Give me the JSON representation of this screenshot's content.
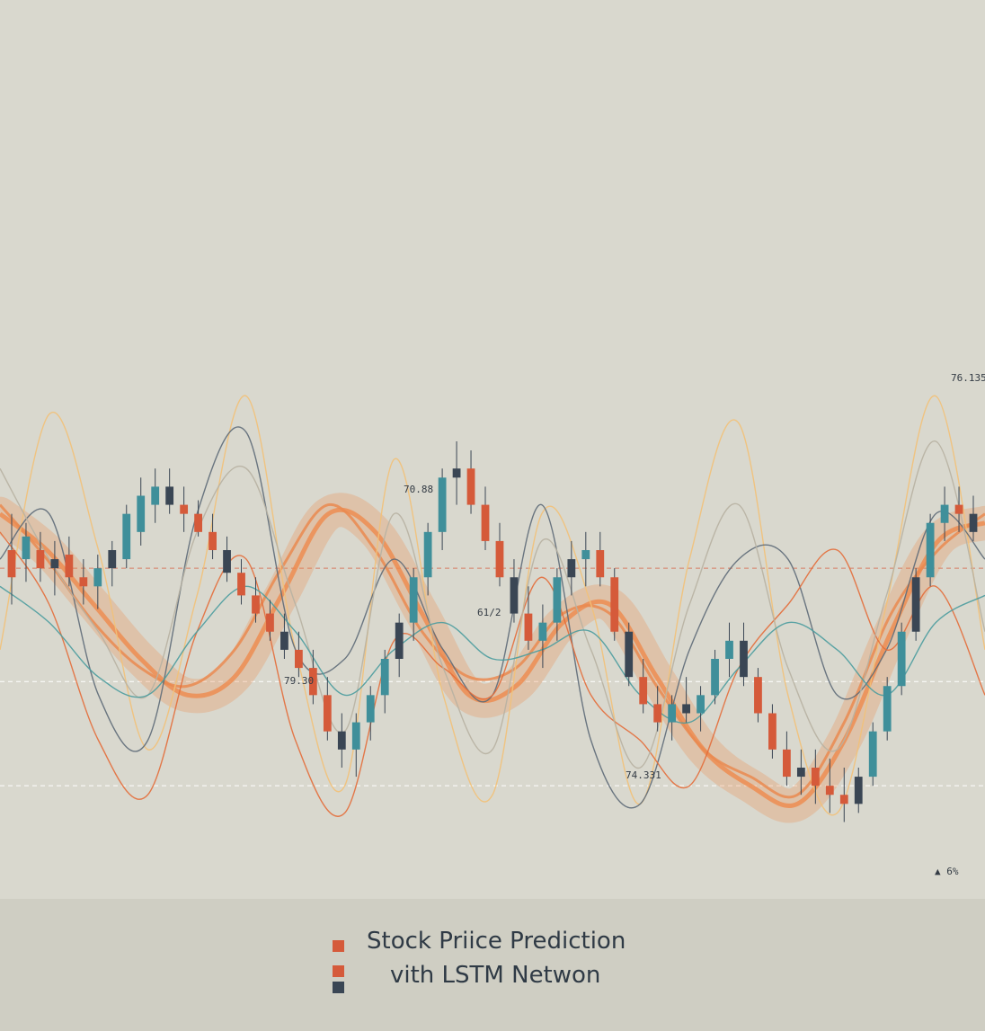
{
  "chart_data": {
    "type": "candlestick",
    "title": [
      "Stock Priice Prediction",
      "vith LSTM Netwon"
    ],
    "legend": [
      {
        "color": "#d55a3a"
      },
      {
        "color": "#d55a3a"
      },
      {
        "color": "#3a4654"
      }
    ],
    "annotations": [
      {
        "text": "76.135"
      },
      {
        "text": "70.88"
      },
      {
        "text": "79.30"
      },
      {
        "text": "61/2"
      },
      {
        "text": "74.331"
      },
      {
        "text": "▲ 6%"
      }
    ],
    "candles": [
      {
        "o": 62,
        "h": 70,
        "l": 50,
        "c": 56
      },
      {
        "o": 60,
        "h": 68,
        "l": 55,
        "c": 65
      },
      {
        "o": 62,
        "h": 66,
        "l": 55,
        "c": 58
      },
      {
        "o": 58,
        "h": 64,
        "l": 52,
        "c": 60
      },
      {
        "o": 61,
        "h": 65,
        "l": 54,
        "c": 56
      },
      {
        "o": 56,
        "h": 60,
        "l": 50,
        "c": 54
      },
      {
        "o": 54,
        "h": 61,
        "l": 49,
        "c": 58
      },
      {
        "o": 58,
        "h": 64,
        "l": 54,
        "c": 62
      },
      {
        "o": 60,
        "h": 72,
        "l": 58,
        "c": 70
      },
      {
        "o": 66,
        "h": 78,
        "l": 63,
        "c": 74
      },
      {
        "o": 72,
        "h": 80,
        "l": 68,
        "c": 76
      },
      {
        "o": 76,
        "h": 80,
        "l": 70,
        "c": 72
      },
      {
        "o": 72,
        "h": 76,
        "l": 66,
        "c": 70
      },
      {
        "o": 70,
        "h": 73,
        "l": 65,
        "c": 66
      },
      {
        "o": 66,
        "h": 70,
        "l": 60,
        "c": 62
      },
      {
        "o": 62,
        "h": 65,
        "l": 55,
        "c": 57
      },
      {
        "o": 57,
        "h": 60,
        "l": 50,
        "c": 52
      },
      {
        "o": 52,
        "h": 56,
        "l": 46,
        "c": 48
      },
      {
        "o": 48,
        "h": 51,
        "l": 42,
        "c": 44
      },
      {
        "o": 44,
        "h": 48,
        "l": 38,
        "c": 40
      },
      {
        "o": 40,
        "h": 44,
        "l": 34,
        "c": 36
      },
      {
        "o": 36,
        "h": 40,
        "l": 28,
        "c": 30
      },
      {
        "o": 30,
        "h": 34,
        "l": 20,
        "c": 22
      },
      {
        "o": 22,
        "h": 26,
        "l": 14,
        "c": 18
      },
      {
        "o": 18,
        "h": 26,
        "l": 12,
        "c": 24
      },
      {
        "o": 24,
        "h": 32,
        "l": 20,
        "c": 30
      },
      {
        "o": 30,
        "h": 40,
        "l": 26,
        "c": 38
      },
      {
        "o": 38,
        "h": 48,
        "l": 34,
        "c": 46
      },
      {
        "o": 46,
        "h": 58,
        "l": 42,
        "c": 56
      },
      {
        "o": 56,
        "h": 68,
        "l": 52,
        "c": 66
      },
      {
        "o": 66,
        "h": 80,
        "l": 62,
        "c": 78
      },
      {
        "o": 78,
        "h": 86,
        "l": 72,
        "c": 80
      },
      {
        "o": 80,
        "h": 84,
        "l": 70,
        "c": 72
      },
      {
        "o": 72,
        "h": 76,
        "l": 62,
        "c": 64
      },
      {
        "o": 64,
        "h": 68,
        "l": 54,
        "c": 56
      },
      {
        "o": 56,
        "h": 60,
        "l": 46,
        "c": 48
      },
      {
        "o": 48,
        "h": 54,
        "l": 40,
        "c": 42
      },
      {
        "o": 42,
        "h": 50,
        "l": 36,
        "c": 46
      },
      {
        "o": 46,
        "h": 58,
        "l": 42,
        "c": 56
      },
      {
        "o": 56,
        "h": 64,
        "l": 52,
        "c": 60
      },
      {
        "o": 60,
        "h": 66,
        "l": 54,
        "c": 62
      },
      {
        "o": 62,
        "h": 66,
        "l": 54,
        "c": 56
      },
      {
        "o": 56,
        "h": 58,
        "l": 42,
        "c": 44
      },
      {
        "o": 44,
        "h": 46,
        "l": 32,
        "c": 34
      },
      {
        "o": 34,
        "h": 38,
        "l": 26,
        "c": 28
      },
      {
        "o": 28,
        "h": 32,
        "l": 22,
        "c": 24
      },
      {
        "o": 24,
        "h": 30,
        "l": 20,
        "c": 28
      },
      {
        "o": 28,
        "h": 34,
        "l": 24,
        "c": 26
      },
      {
        "o": 26,
        "h": 32,
        "l": 22,
        "c": 30
      },
      {
        "o": 30,
        "h": 40,
        "l": 28,
        "c": 38
      },
      {
        "o": 38,
        "h": 46,
        "l": 34,
        "c": 42
      },
      {
        "o": 42,
        "h": 46,
        "l": 32,
        "c": 34
      },
      {
        "o": 34,
        "h": 36,
        "l": 24,
        "c": 26
      },
      {
        "o": 26,
        "h": 28,
        "l": 16,
        "c": 18
      },
      {
        "o": 18,
        "h": 22,
        "l": 10,
        "c": 12
      },
      {
        "o": 12,
        "h": 18,
        "l": 8,
        "c": 14
      },
      {
        "o": 14,
        "h": 18,
        "l": 6,
        "c": 10
      },
      {
        "o": 10,
        "h": 16,
        "l": 4,
        "c": 8
      },
      {
        "o": 8,
        "h": 14,
        "l": 2,
        "c": 6
      },
      {
        "o": 6,
        "h": 14,
        "l": 4,
        "c": 12
      },
      {
        "o": 12,
        "h": 24,
        "l": 10,
        "c": 22
      },
      {
        "o": 22,
        "h": 34,
        "l": 20,
        "c": 32
      },
      {
        "o": 32,
        "h": 46,
        "l": 30,
        "c": 44
      },
      {
        "o": 44,
        "h": 58,
        "l": 42,
        "c": 56
      },
      {
        "o": 56,
        "h": 70,
        "l": 54,
        "c": 68
      },
      {
        "o": 68,
        "h": 76,
        "l": 64,
        "c": 72
      },
      {
        "o": 72,
        "h": 76,
        "l": 66,
        "c": 70
      },
      {
        "o": 70,
        "h": 74,
        "l": 64,
        "c": 66
      }
    ],
    "prediction_curves": [
      {
        "role": "lstm-band",
        "color": "#ee8a4c",
        "points": [
          70,
          62,
          50,
          38,
          30,
          34,
          52,
          70,
          66,
          48,
          30,
          32,
          46,
          50,
          34,
          18,
          10,
          6,
          20,
          44,
          64,
          68
        ]
      },
      {
        "role": "trend",
        "color": "#ea8a50",
        "points": [
          72,
          60,
          46,
          36,
          32,
          40,
          58,
          72,
          62,
          44,
          34,
          36,
          48,
          48,
          32,
          18,
          12,
          8,
          24,
          48,
          62,
          70
        ]
      },
      {
        "role": "oscillator",
        "color": "#f2c178",
        "points": [
          40,
          92,
          62,
          18,
          52,
          96,
          40,
          10,
          82,
          30,
          8,
          70,
          50,
          6,
          60,
          90,
          30,
          4,
          50,
          96,
          40
        ]
      },
      {
        "role": "oscillator",
        "color": "#5d6a78",
        "points": [
          60,
          70,
          30,
          20,
          70,
          88,
          40,
          38,
          60,
          40,
          30,
          72,
          20,
          6,
          40,
          60,
          60,
          30,
          40,
          70,
          60
        ]
      },
      {
        "role": "oscillator",
        "color": "#e36d3a",
        "points": [
          66,
          50,
          20,
          8,
          44,
          60,
          20,
          4,
          42,
          36,
          30,
          56,
          30,
          20,
          10,
          36,
          50,
          62,
          40,
          54,
          30
        ]
      },
      {
        "role": "oscillator",
        "color": "#b7b1a2",
        "points": [
          80,
          60,
          44,
          30,
          66,
          80,
          50,
          22,
          70,
          36,
          18,
          64,
          40,
          14,
          50,
          72,
          36,
          18,
          52,
          86,
          44
        ]
      },
      {
        "role": "oscillator",
        "color": "#4a9c9e",
        "points": [
          54,
          46,
          34,
          30,
          44,
          54,
          44,
          30,
          40,
          46,
          38,
          40,
          44,
          30,
          24,
          36,
          46,
          40,
          30,
          46,
          52
        ]
      }
    ],
    "reference_lines": [
      {
        "value": 58,
        "color": "#d77d66"
      },
      {
        "value": 33,
        "color": "#ffffff"
      },
      {
        "value": 10,
        "color": "#ffffff"
      }
    ],
    "ylim": [
      -10,
      110
    ],
    "grid": false
  }
}
